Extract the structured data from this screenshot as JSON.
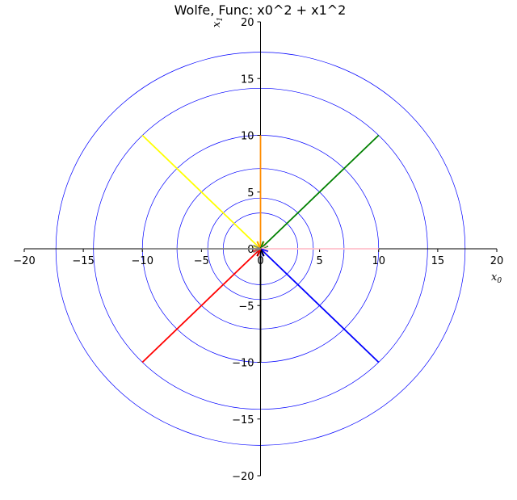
{
  "chart_data": {
    "type": "line",
    "title": "Wolfe, Func: x0^2 + x1^2",
    "xlabel": "x",
    "xlabel_sub": "0",
    "ylabel": "x",
    "ylabel_sub": "1",
    "xlim": [
      -20,
      20
    ],
    "ylim": [
      -20,
      20
    ],
    "xticks": [
      -20,
      -15,
      -10,
      -5,
      0,
      5,
      10,
      15,
      20
    ],
    "yticks": [
      -20,
      -15,
      -10,
      -5,
      0,
      5,
      10,
      15,
      20
    ],
    "xtick_labels": [
      "−20",
      "−15",
      "−10",
      "−5",
      "0",
      "5",
      "10",
      "15",
      "20"
    ],
    "ytick_labels": [
      "−20",
      "−15",
      "−10",
      "−5",
      "0",
      "5",
      "10",
      "15",
      "20"
    ],
    "grid": false,
    "contour_color": "#0000ff",
    "contour_radii": [
      3.16,
      4.47,
      7.07,
      10,
      14.14,
      17.32
    ],
    "series": [
      {
        "color": "#ffff00",
        "start": [
          -10,
          10
        ],
        "end": [
          0,
          0
        ]
      },
      {
        "color": "#ff8c00",
        "start": [
          0,
          10
        ],
        "end": [
          0,
          0
        ]
      },
      {
        "color": "#008000",
        "start": [
          10,
          10
        ],
        "end": [
          0,
          0
        ]
      },
      {
        "color": "#ffc0cb",
        "start": [
          10,
          0
        ],
        "end": [
          0,
          0
        ]
      },
      {
        "color": "#0000ff",
        "start": [
          10,
          -10
        ],
        "end": [
          0,
          0
        ]
      },
      {
        "color": "#000000",
        "start": [
          0,
          -10
        ],
        "end": [
          0,
          0
        ]
      },
      {
        "color": "#ff0000",
        "start": [
          -10,
          -10
        ],
        "end": [
          0,
          0
        ]
      },
      {
        "color": "#808080",
        "start": [
          -10,
          0
        ],
        "end": [
          0,
          0
        ]
      }
    ]
  }
}
